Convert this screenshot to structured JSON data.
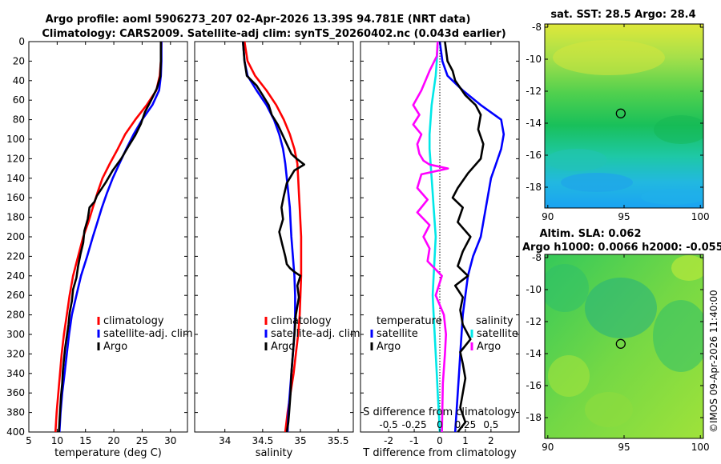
{
  "header": {
    "line1": "Argo profile: aoml 5906273_207 02-Apr-2026 13.39S 94.781E (NRT data)",
    "line2": "Climatology: CARS2009. Satellite-adj clim: synTS_20260402.nc (0.043d earlier)"
  },
  "copyright": "©IMOS 09-Apr-2026 11:40:00",
  "colors": {
    "climatology": "#ff0000",
    "satellite": "#0000ff",
    "argo": "#000000",
    "sat_salinity": "#00e8e8",
    "argo_salinity": "#ff00ff"
  },
  "chart_data": [
    {
      "type": "line",
      "title": "",
      "xlabel": "temperature (deg C)",
      "ylabel": "",
      "xlim": [
        5,
        33
      ],
      "ylim": [
        400,
        0
      ],
      "xticks": [
        5,
        10,
        15,
        20,
        25,
        30
      ],
      "yticks": [
        0,
        20,
        40,
        60,
        80,
        100,
        120,
        140,
        160,
        180,
        200,
        220,
        240,
        260,
        280,
        300,
        320,
        340,
        360,
        380,
        400
      ],
      "legend": [
        "climatology",
        "satellite-adj. clim",
        "Argo"
      ],
      "series": [
        {
          "name": "climatology",
          "color": "#ff0000",
          "x": [
            28.4,
            28.3,
            28.1,
            27.5,
            25.8,
            23.8,
            22.0,
            20.7,
            19.3,
            18.0,
            17.1,
            16.3,
            15.5,
            14.6,
            13.7,
            12.8,
            12.2,
            11.7,
            11.2,
            10.8,
            10.5,
            10.2,
            9.9,
            9.7
          ],
          "y": [
            0,
            20,
            35,
            50,
            65,
            80,
            95,
            110,
            125,
            140,
            155,
            170,
            185,
            200,
            220,
            240,
            260,
            280,
            300,
            320,
            340,
            360,
            380,
            400
          ]
        },
        {
          "name": "satellite-adj. clim",
          "color": "#0000ff",
          "x": [
            28.4,
            28.4,
            28.3,
            28.0,
            26.8,
            25.0,
            23.5,
            22.2,
            21.0,
            19.8,
            18.8,
            17.9,
            17.1,
            16.3,
            15.3,
            14.2,
            13.4,
            12.6,
            12.1,
            11.7,
            11.3,
            10.9,
            10.6,
            10.4
          ],
          "y": [
            0,
            20,
            35,
            50,
            65,
            80,
            95,
            110,
            125,
            140,
            155,
            170,
            185,
            200,
            220,
            240,
            260,
            280,
            300,
            320,
            340,
            360,
            380,
            400
          ]
        },
        {
          "name": "Argo",
          "color": "#000000",
          "x": [
            28.3,
            28.3,
            28.2,
            27.6,
            26.6,
            25.5,
            24.8,
            23.8,
            22.5,
            21.3,
            19.8,
            18.6,
            17.0,
            16.6,
            15.7,
            15.4,
            14.8,
            14.6,
            14.1,
            13.7,
            13.4,
            12.8,
            12.6,
            12.2,
            12.0,
            11.7,
            11.4,
            11.2,
            11.0,
            10.9,
            10.7,
            10.5,
            10.3
          ],
          "y": [
            0,
            20,
            36,
            48,
            60,
            72,
            84,
            96,
            108,
            120,
            132,
            144,
            158,
            164,
            170,
            182,
            194,
            206,
            218,
            230,
            242,
            254,
            266,
            278,
            290,
            302,
            314,
            326,
            338,
            350,
            362,
            380,
            400
          ]
        }
      ]
    },
    {
      "type": "line",
      "title": "",
      "xlabel": "salinity",
      "ylabel": "",
      "xlim": [
        33.6,
        35.7
      ],
      "ylim": [
        400,
        0
      ],
      "xticks": [
        34,
        34.5,
        35,
        35.5
      ],
      "legend": [
        "climatology",
        "satellite-adj. clim",
        "Argo"
      ],
      "series": [
        {
          "name": "climatology",
          "color": "#ff0000",
          "x": [
            34.26,
            34.3,
            34.4,
            34.55,
            34.68,
            34.78,
            34.86,
            34.92,
            34.96,
            34.97,
            34.98,
            34.99,
            35.0,
            35.01,
            35.01,
            35.01,
            35.0,
            34.99,
            34.97,
            34.94,
            34.91,
            34.87,
            34.83,
            34.8
          ],
          "y": [
            0,
            20,
            35,
            50,
            65,
            80,
            95,
            110,
            125,
            140,
            155,
            170,
            185,
            200,
            220,
            240,
            260,
            280,
            300,
            320,
            340,
            360,
            380,
            400
          ]
        },
        {
          "name": "satellite-adj. clim",
          "color": "#0000ff",
          "x": [
            34.24,
            34.26,
            34.3,
            34.42,
            34.55,
            34.65,
            34.72,
            34.77,
            34.8,
            34.82,
            34.84,
            34.86,
            34.87,
            34.88,
            34.9,
            34.92,
            34.93,
            34.93,
            34.92,
            34.9,
            34.88,
            34.86,
            34.84,
            34.83
          ],
          "y": [
            0,
            20,
            35,
            50,
            65,
            80,
            95,
            110,
            125,
            140,
            155,
            170,
            185,
            200,
            220,
            240,
            260,
            280,
            300,
            320,
            340,
            360,
            380,
            400
          ]
        },
        {
          "name": "Argo",
          "color": "#000000",
          "x": [
            34.24,
            34.26,
            34.29,
            34.42,
            34.5,
            34.58,
            34.62,
            34.7,
            34.76,
            34.82,
            34.88,
            34.95,
            35.05,
            34.92,
            34.82,
            34.78,
            34.75,
            34.77,
            34.72,
            34.76,
            34.8,
            34.82,
            34.86,
            34.92,
            35.0,
            34.96,
            34.98,
            34.94,
            34.92,
            34.9,
            34.88,
            34.87,
            34.85,
            34.84,
            34.82
          ],
          "y": [
            0,
            20,
            35,
            45,
            55,
            65,
            75,
            85,
            95,
            105,
            115,
            120,
            126,
            132,
            145,
            158,
            170,
            182,
            195,
            208,
            220,
            228,
            232,
            236,
            240,
            250,
            262,
            280,
            300,
            320,
            340,
            360,
            380,
            390,
            400
          ]
        }
      ]
    },
    {
      "type": "line",
      "title": "",
      "xlabel": "T difference from climatology",
      "xlabel2": "S difference from climatology",
      "xlim": [
        -3.1,
        3.1
      ],
      "ylim": [
        400,
        0
      ],
      "xticks": [
        -2,
        -1,
        0,
        1,
        2
      ],
      "xticks2": [
        -0.5,
        -0.25,
        0,
        0.25,
        0.5
      ],
      "legend_temperature_title": "temperature",
      "legend_salinity_title": "salinity",
      "legend": [
        "satellite",
        "Argo",
        "satellite",
        "Argo"
      ],
      "series": [
        {
          "name": "temperature satellite",
          "color": "#0000ff",
          "x": [
            0.0,
            0.1,
            0.3,
            0.9,
            1.6,
            2.4,
            2.5,
            2.4,
            2.2,
            2.0,
            1.9,
            1.8,
            1.7,
            1.6,
            1.3,
            1.1,
            1.0,
            0.9,
            0.85,
            0.8,
            0.75,
            0.7,
            0.65,
            0.6
          ],
          "y": [
            0,
            20,
            35,
            50,
            65,
            80,
            95,
            110,
            125,
            140,
            155,
            170,
            185,
            200,
            220,
            240,
            260,
            280,
            300,
            320,
            340,
            360,
            380,
            400
          ]
        },
        {
          "name": "temperature Argo",
          "color": "#000000",
          "x": [
            0.2,
            0.3,
            0.5,
            0.6,
            1.0,
            1.4,
            1.6,
            1.5,
            1.7,
            1.6,
            1.1,
            0.7,
            0.5,
            0.9,
            0.7,
            1.2,
            0.9,
            0.7,
            1.1,
            0.6,
            0.9,
            0.8,
            0.9,
            1.2,
            0.8,
            0.9,
            1.0,
            0.9,
            0.8,
            1.0,
            0.7
          ],
          "y": [
            0,
            20,
            30,
            40,
            55,
            65,
            75,
            90,
            105,
            120,
            135,
            150,
            160,
            170,
            185,
            200,
            215,
            230,
            240,
            250,
            262,
            275,
            290,
            305,
            318,
            330,
            345,
            360,
            375,
            390,
            400
          ]
        },
        {
          "name": "salinity satellite",
          "color": "#00e8e8",
          "x": [
            -0.02,
            -0.03,
            -0.04,
            -0.06,
            -0.08,
            -0.09,
            -0.1,
            -0.1,
            -0.09,
            -0.08,
            -0.07,
            -0.06,
            -0.05,
            -0.04,
            -0.05,
            -0.06,
            -0.07,
            -0.06,
            -0.05,
            -0.04,
            -0.03,
            -0.02,
            -0.01,
            0.0
          ],
          "y": [
            0,
            20,
            35,
            50,
            65,
            80,
            95,
            110,
            125,
            140,
            155,
            170,
            185,
            200,
            220,
            240,
            260,
            280,
            300,
            320,
            340,
            360,
            380,
            400
          ]
        },
        {
          "name": "salinity Argo",
          "color": "#ff00ff",
          "x": [
            -0.02,
            -0.03,
            -0.1,
            -0.18,
            -0.26,
            -0.2,
            -0.26,
            -0.18,
            -0.22,
            -0.2,
            -0.16,
            -0.1,
            0.08,
            -0.18,
            -0.22,
            -0.12,
            -0.22,
            -0.1,
            -0.16,
            -0.1,
            -0.12,
            0.02,
            -0.04,
            0.04,
            0.06,
            0.05,
            0.03,
            0.02
          ],
          "y": [
            0,
            15,
            30,
            50,
            65,
            75,
            85,
            95,
            105,
            115,
            122,
            126,
            130,
            136,
            150,
            162,
            175,
            188,
            200,
            212,
            225,
            240,
            260,
            280,
            300,
            320,
            350,
            400
          ]
        }
      ]
    },
    {
      "type": "heatmap",
      "title": "sat. SST: 28.5 Argo: 28.4",
      "xlim": [
        89.8,
        100.2
      ],
      "ylim": [
        -19.3,
        -7.8
      ],
      "xticks": [
        90,
        95,
        100
      ],
      "yticks": [
        -8,
        -10,
        -12,
        -14,
        -16,
        -18
      ],
      "xticklabels": [
        "90",
        "95",
        "100"
      ],
      "yticklabels": [
        "-8",
        "-10",
        "-12",
        "-14",
        "-16",
        "-18"
      ],
      "argo_position": {
        "lon": 94.781,
        "lat": -13.39
      }
    },
    {
      "type": "heatmap",
      "title": "Altim. SLA: 0.062",
      "subtitle": "Argo h1000: 0.0066 h2000: -0.055",
      "xlim": [
        89.8,
        100.2
      ],
      "ylim": [
        -19.3,
        -7.8
      ],
      "xticks": [
        90,
        95,
        100
      ],
      "yticks": [
        -8,
        -10,
        -12,
        -14,
        -16,
        -18
      ],
      "xticklabels": [
        "90",
        "95",
        "100"
      ],
      "yticklabels": [
        "-8",
        "-10",
        "-12",
        "-14",
        "-16",
        "-18"
      ],
      "argo_position": {
        "lon": 94.781,
        "lat": -13.39
      }
    }
  ]
}
